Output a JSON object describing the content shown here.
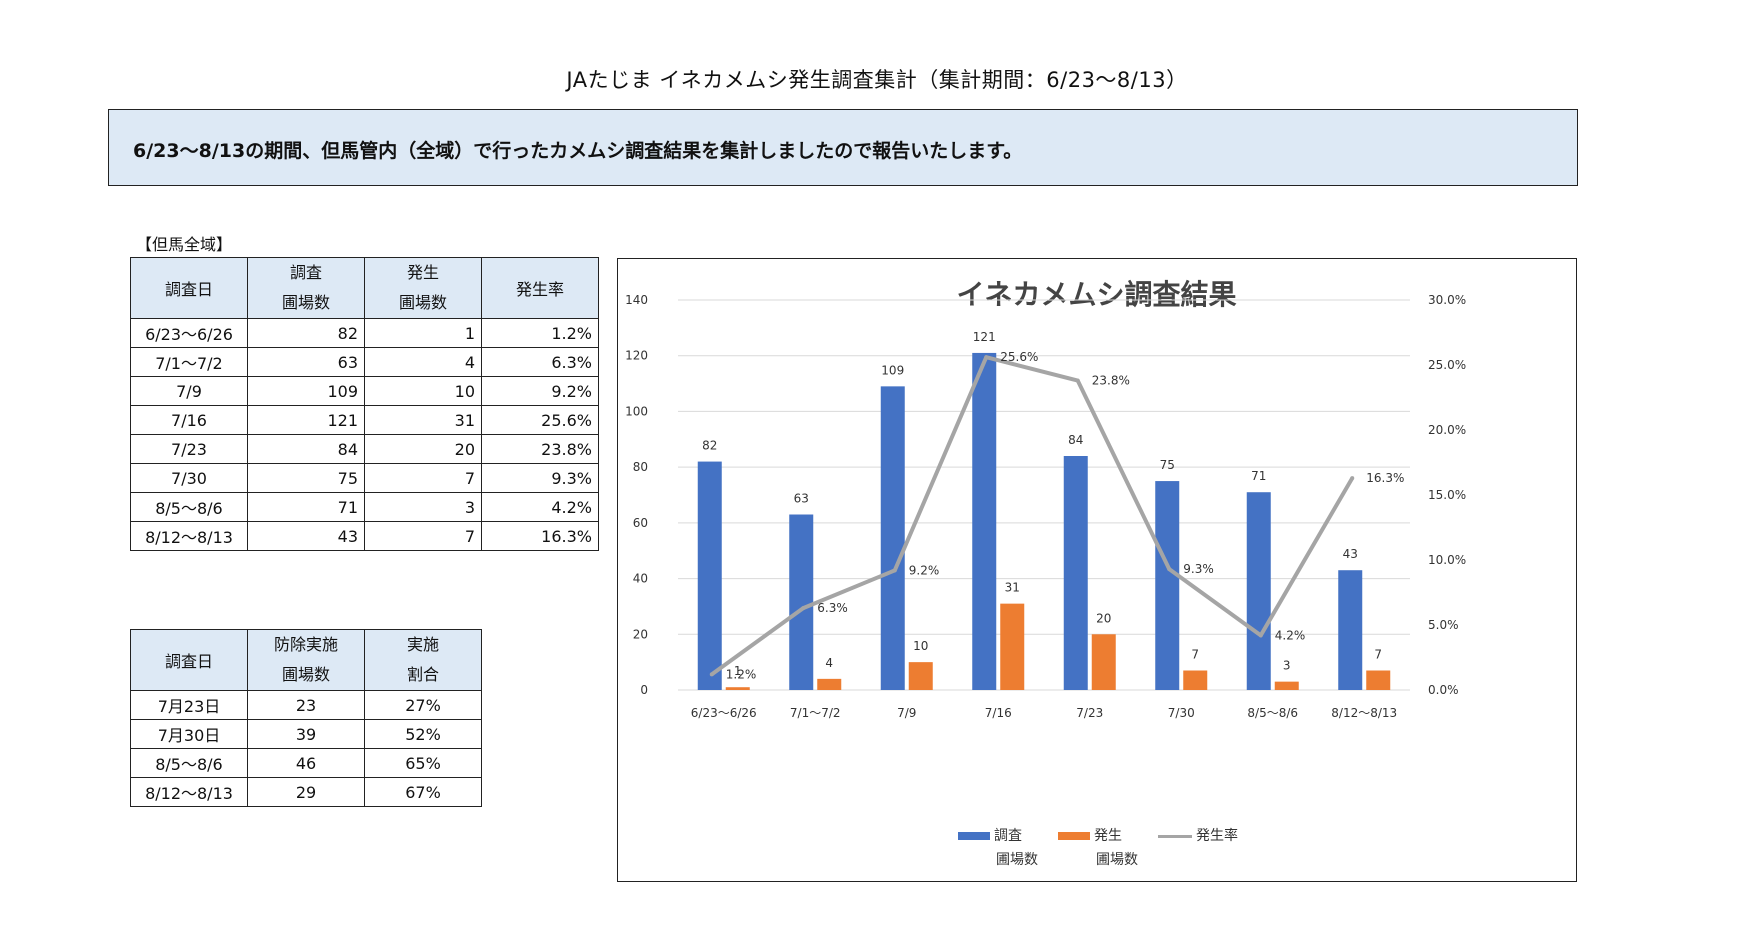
{
  "page": {
    "title": "JAたじま イネカメムシ発生調査集計（集計期間：6/23～8/13）",
    "banner": "6/23～8/13の期間、但馬管内（全域）で行ったカメムシ調査結果を集計しましたので報告いたします。",
    "region_label": "【但馬全域】"
  },
  "table1": {
    "headers": [
      {
        "l1": "調査日",
        "l2": ""
      },
      {
        "l1": "調査",
        "l2": "圃場数"
      },
      {
        "l1": "発生",
        "l2": "圃場数"
      },
      {
        "l1": "発生率",
        "l2": ""
      }
    ],
    "rows": [
      {
        "date": "6/23～6/26",
        "surveyed": "82",
        "occurred": "1",
        "rate": "1.2%"
      },
      {
        "date": "7/1～7/2",
        "surveyed": "63",
        "occurred": "4",
        "rate": "6.3%"
      },
      {
        "date": "7/9",
        "surveyed": "109",
        "occurred": "10",
        "rate": "9.2%"
      },
      {
        "date": "7/16",
        "surveyed": "121",
        "occurred": "31",
        "rate": "25.6%"
      },
      {
        "date": "7/23",
        "surveyed": "84",
        "occurred": "20",
        "rate": "23.8%"
      },
      {
        "date": "7/30",
        "surveyed": "75",
        "occurred": "7",
        "rate": "9.3%"
      },
      {
        "date": "8/5～8/6",
        "surveyed": "71",
        "occurred": "3",
        "rate": "4.2%"
      },
      {
        "date": "8/12～8/13",
        "surveyed": "43",
        "occurred": "7",
        "rate": "16.3%"
      }
    ]
  },
  "table2": {
    "headers": [
      {
        "l1": "調査日",
        "l2": ""
      },
      {
        "l1": "防除実施",
        "l2": "圃場数"
      },
      {
        "l1": "実施",
        "l2": "割合"
      }
    ],
    "rows": [
      {
        "date": "7月23日",
        "count": "23",
        "ratio": "27%"
      },
      {
        "date": "7月30日",
        "count": "39",
        "ratio": "52%"
      },
      {
        "date": "8/5～8/6",
        "count": "46",
        "ratio": "65%"
      },
      {
        "date": "8/12～8/13",
        "count": "29",
        "ratio": "67%"
      }
    ]
  },
  "chart_data": {
    "type": "bar",
    "title": "イネカメムシ調査結果",
    "categories": [
      "6/23～6/26",
      "7/1～7/2",
      "7/9",
      "7/16",
      "7/23",
      "7/30",
      "8/5～8/6",
      "8/12～8/13"
    ],
    "series": [
      {
        "name": "調査 圃場数",
        "legend_l1": "調査",
        "legend_l2": "圃場数",
        "type": "bar",
        "axis": "left",
        "color": "#4472c4",
        "values": [
          82,
          63,
          109,
          121,
          84,
          75,
          71,
          43
        ],
        "labels": [
          "82",
          "63",
          "109",
          "121",
          "84",
          "75",
          "71",
          "43"
        ]
      },
      {
        "name": "発生 圃場数",
        "legend_l1": "発生",
        "legend_l2": "圃場数",
        "type": "bar",
        "axis": "left",
        "color": "#ed7d31",
        "values": [
          1,
          4,
          10,
          31,
          20,
          7,
          3,
          7
        ],
        "labels": [
          "1",
          "4",
          "10",
          "31",
          "20",
          "7",
          "3",
          "7"
        ]
      },
      {
        "name": "発生率",
        "legend_l1": "発生率",
        "legend_l2": "",
        "type": "line",
        "axis": "right",
        "color": "#a5a5a5",
        "values": [
          1.2,
          6.3,
          9.2,
          25.6,
          23.8,
          9.3,
          4.2,
          16.3
        ],
        "labels": [
          "1.2%",
          "6.3%",
          "9.2%",
          "25.6%",
          "23.8%",
          "9.3%",
          "4.2%",
          "16.3%"
        ]
      }
    ],
    "y_left": {
      "min": 0,
      "max": 140,
      "ticks": [
        "0",
        "20",
        "40",
        "60",
        "80",
        "100",
        "120",
        "140"
      ]
    },
    "y_right": {
      "min": 0,
      "max": 30,
      "ticks": [
        "0.0%",
        "5.0%",
        "10.0%",
        "15.0%",
        "20.0%",
        "25.0%",
        "30.0%"
      ]
    },
    "legend_position": "bottom",
    "grid": true
  }
}
